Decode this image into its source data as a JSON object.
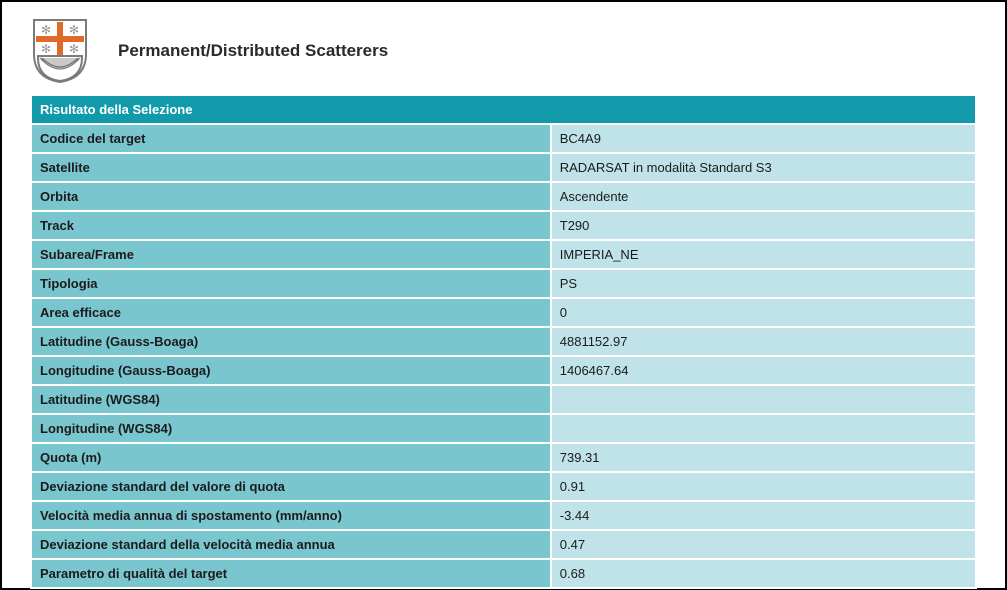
{
  "page": {
    "title": "Permanent/Distributed Scatterers"
  },
  "table": {
    "section_header": "Risultato della Selezione",
    "header_bg": "#139aaa",
    "header_color": "#ffffff",
    "label_bg": "#7ac6cf",
    "value_bg": "#bfe3e8",
    "cell_border": "#ffffff",
    "label_fontsize": 13,
    "value_fontsize": 13,
    "rows": [
      {
        "label": "Codice del target",
        "value": "BC4A9"
      },
      {
        "label": "Satellite",
        "value": "RADARSAT in modalità Standard S3"
      },
      {
        "label": "Orbita",
        "value": "Ascendente"
      },
      {
        "label": "Track",
        "value": "T290"
      },
      {
        "label": "Subarea/Frame",
        "value": "IMPERIA_NE"
      },
      {
        "label": "Tipologia",
        "value": "PS"
      },
      {
        "label": "Area efficace",
        "value": "0"
      },
      {
        "label": "Latitudine (Gauss-Boaga)",
        "value": "4881152.97"
      },
      {
        "label": "Longitudine (Gauss-Boaga)",
        "value": "1406467.64"
      },
      {
        "label": "Latitudine (WGS84)",
        "value": ""
      },
      {
        "label": "Longitudine (WGS84)",
        "value": ""
      },
      {
        "label": "Quota (m)",
        "value": "739.31"
      },
      {
        "label": "Deviazione standard del valore di quota",
        "value": "0.91"
      },
      {
        "label": "Velocità media annua di spostamento (mm/anno)",
        "value": "-3.44"
      },
      {
        "label": "Deviazione standard della velocità media annua",
        "value": "0.47"
      },
      {
        "label": "Parametro di qualità del target",
        "value": "0.68"
      }
    ]
  },
  "logo": {
    "shield_outline": "#7a7a7a",
    "cross_color": "#e06a2a",
    "star_color": "#b7b7b7",
    "bowl_fill": "#c9c9c9"
  }
}
